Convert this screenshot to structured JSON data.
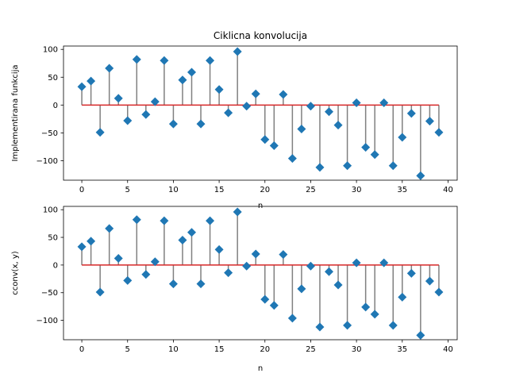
{
  "figure": {
    "title": "Ciklicna konvolucija"
  },
  "chart_data": [
    {
      "type": "stem",
      "title": "Ciklicna konvolucija",
      "xlabel": "n",
      "ylabel": "Implementirana funkcija",
      "xlim": [
        -2,
        41
      ],
      "ylim": [
        -135,
        106
      ],
      "xticks": [
        0,
        5,
        10,
        15,
        20,
        25,
        30,
        35,
        40
      ],
      "yticks": [
        -100,
        -50,
        0,
        50,
        100
      ],
      "yticklabels": [
        "−100",
        "−50",
        "0",
        "50",
        "100"
      ],
      "marker": "diamond",
      "marker_color": "#1f77b4",
      "stem_color": "#808080",
      "baseline_color": "#d62728",
      "x": [
        0,
        1,
        2,
        3,
        4,
        5,
        6,
        7,
        8,
        9,
        10,
        11,
        12,
        13,
        14,
        15,
        16,
        17,
        18,
        19,
        20,
        21,
        22,
        23,
        24,
        25,
        26,
        27,
        28,
        29,
        30,
        31,
        32,
        33,
        34,
        35,
        36,
        37,
        38,
        39
      ],
      "y": [
        33,
        43,
        -49,
        66,
        12,
        -28,
        82,
        -17,
        6,
        80,
        -34,
        45,
        59,
        -34,
        80,
        28,
        -14,
        96,
        -2,
        20,
        -62,
        -73,
        19,
        -96,
        -43,
        -2,
        -112,
        -12,
        -36,
        -109,
        4,
        -76,
        -89,
        4,
        -109,
        -58,
        -15,
        -127,
        -29,
        -49
      ]
    },
    {
      "type": "stem",
      "title": "",
      "xlabel": "n",
      "ylabel": "cconv(x, y)",
      "xlim": [
        -2,
        41
      ],
      "ylim": [
        -135,
        106
      ],
      "xticks": [
        0,
        5,
        10,
        15,
        20,
        25,
        30,
        35,
        40
      ],
      "yticks": [
        -100,
        -50,
        0,
        50,
        100
      ],
      "yticklabels": [
        "−100",
        "−50",
        "0",
        "50",
        "100"
      ],
      "marker": "diamond",
      "marker_color": "#1f77b4",
      "stem_color": "#808080",
      "baseline_color": "#d62728",
      "x": [
        0,
        1,
        2,
        3,
        4,
        5,
        6,
        7,
        8,
        9,
        10,
        11,
        12,
        13,
        14,
        15,
        16,
        17,
        18,
        19,
        20,
        21,
        22,
        23,
        24,
        25,
        26,
        27,
        28,
        29,
        30,
        31,
        32,
        33,
        34,
        35,
        36,
        37,
        38,
        39
      ],
      "y": [
        33,
        43,
        -49,
        66,
        12,
        -28,
        82,
        -17,
        6,
        80,
        -34,
        45,
        59,
        -34,
        80,
        28,
        -14,
        96,
        -2,
        20,
        -62,
        -73,
        19,
        -96,
        -43,
        -2,
        -112,
        -12,
        -36,
        -109,
        4,
        -76,
        -89,
        4,
        -109,
        -58,
        -15,
        -127,
        -29,
        -49
      ]
    }
  ]
}
